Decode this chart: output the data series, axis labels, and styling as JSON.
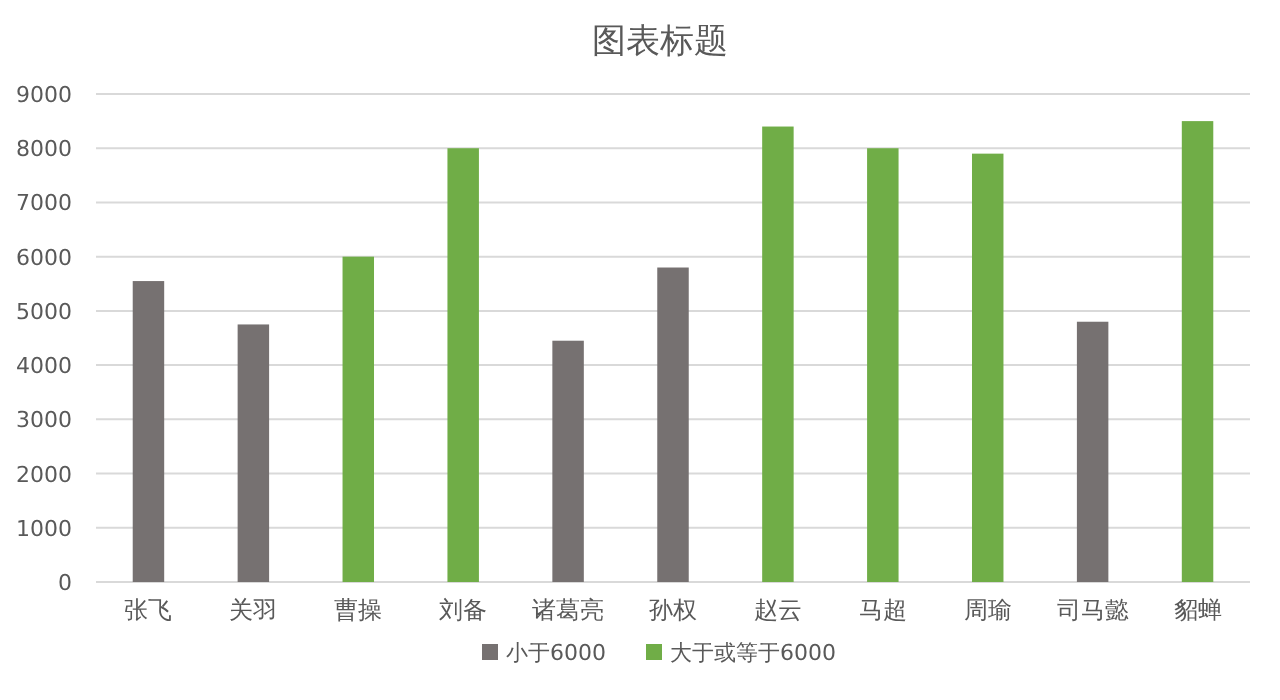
{
  "chart_data": {
    "type": "bar",
    "title": "图表标题",
    "categories": [
      "张飞",
      "关羽",
      "曹操",
      "刘备",
      "诸葛亮",
      "孙权",
      "赵云",
      "马超",
      "周瑜",
      "司马懿",
      "貂蝉"
    ],
    "series": [
      {
        "name": "小于6000",
        "color": "#767171",
        "values": [
          5550,
          4750,
          null,
          null,
          4450,
          5800,
          null,
          null,
          null,
          4800,
          null
        ]
      },
      {
        "name": "大于或等于6000",
        "color": "#70ad47",
        "values": [
          null,
          null,
          6000,
          8000,
          null,
          null,
          8400,
          8000,
          7900,
          null,
          8500
        ]
      }
    ],
    "stacked": true,
    "ylim": [
      0,
      9000
    ],
    "yticks": [
      0,
      1000,
      2000,
      3000,
      4000,
      5000,
      6000,
      7000,
      8000,
      9000
    ],
    "grid": "y",
    "legend": "bottom"
  }
}
